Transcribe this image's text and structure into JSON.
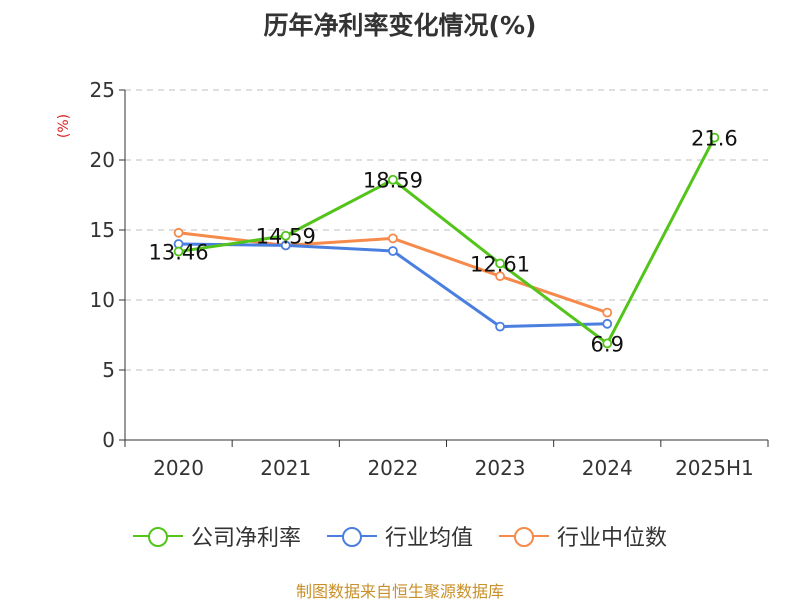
{
  "title": "历年净利率变化情况(%)",
  "source": "制图数据来自恒生聚源数据库",
  "chart_data": {
    "type": "line",
    "title": "历年净利率变化情况(%)",
    "ylabel": "(%)",
    "xlabel": "",
    "categories": [
      "2020",
      "2021",
      "2022",
      "2023",
      "2024",
      "2025H1"
    ],
    "ylim": [
      0,
      25
    ],
    "yticks": [
      0,
      5,
      10,
      15,
      20,
      25
    ],
    "grid": true,
    "legend_position": "bottom",
    "series": [
      {
        "name": "公司净利率",
        "color": "#52c41a",
        "values": [
          13.46,
          14.59,
          18.59,
          12.61,
          6.9,
          21.6
        ],
        "labels": [
          "13.46",
          "14.59",
          "18.59",
          "12.61",
          "6.9",
          "21.6"
        ]
      },
      {
        "name": "行业均值",
        "color": "#4a7fe0",
        "values": [
          14.0,
          13.9,
          13.5,
          8.1,
          8.3,
          null
        ]
      },
      {
        "name": "行业中位数",
        "color": "#f58a4b",
        "values": [
          14.8,
          13.9,
          14.4,
          11.7,
          9.1,
          null
        ]
      }
    ]
  }
}
